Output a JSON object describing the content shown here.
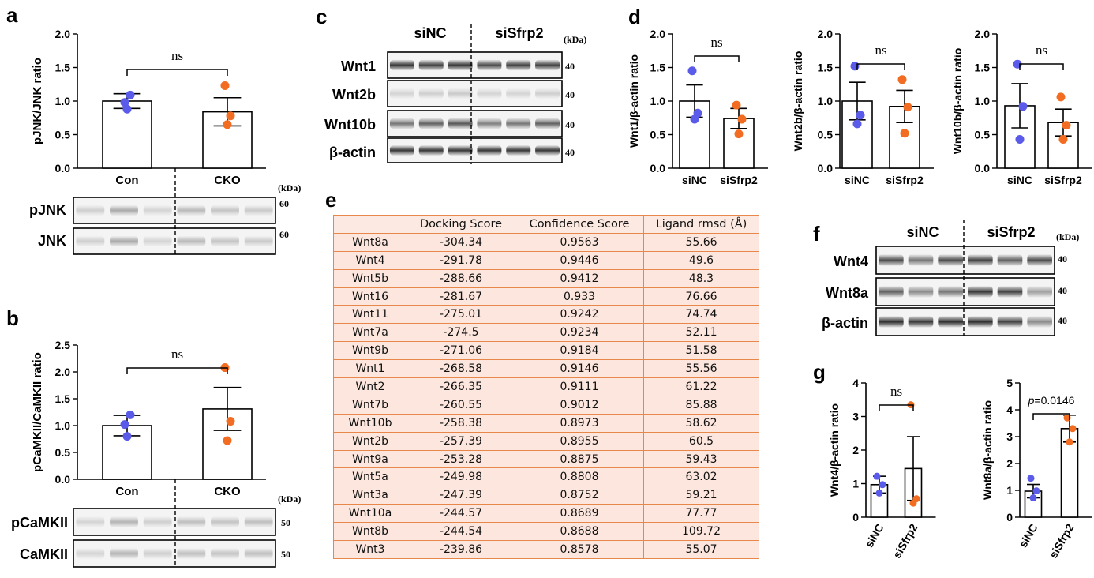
{
  "panels": {
    "a": "a",
    "b": "b",
    "c": "c",
    "d": "d",
    "e": "e",
    "f": "f",
    "g": "g"
  },
  "kda": "(kDa)",
  "chart_data": [
    {
      "id": "a",
      "type": "bar",
      "categories": [
        "Con",
        "CKO"
      ],
      "values": [
        1.0,
        0.84
      ],
      "errors": [
        0.11,
        0.21
      ],
      "points": [
        [
          0.98,
          1.09,
          0.88
        ],
        [
          1.23,
          0.78,
          0.65
        ]
      ],
      "ylabel": "pJNK/JNK ratio",
      "ylim": [
        0,
        2.0
      ],
      "yticks": [
        "0.0",
        "0.5",
        "1.0",
        "1.5",
        "2.0"
      ],
      "sig": "ns"
    },
    {
      "id": "b",
      "type": "bar",
      "categories": [
        "Con",
        "CKO"
      ],
      "values": [
        1.0,
        1.31
      ],
      "errors": [
        0.19,
        0.4
      ],
      "points": [
        [
          1.02,
          1.2,
          0.8
        ],
        [
          2.08,
          1.08,
          0.72
        ]
      ],
      "ylabel": "pCaMKII/CaMKII ratio",
      "ylim": [
        0,
        2.5
      ],
      "yticks": [
        "0.0",
        "0.5",
        "1.0",
        "1.5",
        "2.0",
        "2.5"
      ],
      "sig": "ns"
    },
    {
      "id": "d1",
      "type": "bar",
      "categories": [
        "siNC",
        "siSfrp2"
      ],
      "values": [
        1.0,
        0.74
      ],
      "errors": [
        0.24,
        0.15
      ],
      "points": [
        [
          1.45,
          0.82,
          0.73
        ],
        [
          0.94,
          0.73,
          0.51
        ]
      ],
      "ylabel": "Wnt1/β-actin ratio",
      "ylim": [
        0,
        2.0
      ],
      "yticks": [
        "0.0",
        "0.5",
        "1.0",
        "1.5",
        "2.0"
      ],
      "sig": "ns"
    },
    {
      "id": "d2",
      "type": "bar",
      "categories": [
        "siNC",
        "siSfrp2"
      ],
      "values": [
        1.0,
        0.92
      ],
      "errors": [
        0.28,
        0.24
      ],
      "points": [
        [
          1.52,
          0.79,
          0.66
        ],
        [
          1.32,
          0.91,
          0.52
        ]
      ],
      "ylabel": "Wnt2b/β-actin ratio",
      "ylim": [
        0,
        2.0
      ],
      "yticks": [
        "0.0",
        "0.5",
        "1.0",
        "1.5",
        "2.0"
      ],
      "sig": "ns"
    },
    {
      "id": "d3",
      "type": "bar",
      "categories": [
        "siNC",
        "siSfrp2"
      ],
      "values": [
        0.93,
        0.68
      ],
      "errors": [
        0.33,
        0.2
      ],
      "points": [
        [
          1.55,
          0.92,
          0.43
        ],
        [
          1.06,
          0.64,
          0.43
        ]
      ],
      "ylabel": "Wnt10b/β-actin ratio",
      "ylim": [
        0,
        2.0
      ],
      "yticks": [
        "0.0",
        "0.5",
        "1.0",
        "1.5",
        "2.0"
      ],
      "sig": "ns"
    },
    {
      "id": "g1",
      "type": "bar",
      "categories": [
        "siNC",
        "siSfrp2"
      ],
      "values": [
        0.97,
        1.45
      ],
      "errors": [
        0.25,
        0.95
      ],
      "points": [
        [
          1.22,
          0.97,
          0.72
        ],
        [
          3.35,
          0.55,
          0.42
        ]
      ],
      "ylabel": "Wnt4/β-actin ratio",
      "ylim": [
        0,
        4
      ],
      "yticks": [
        "0",
        "1",
        "2",
        "3",
        "4"
      ],
      "sig": "ns"
    },
    {
      "id": "g2",
      "type": "bar",
      "categories": [
        "siNC",
        "siSfrp2"
      ],
      "values": [
        0.97,
        3.3
      ],
      "errors": [
        0.25,
        0.5
      ],
      "points": [
        [
          1.45,
          0.98,
          0.72
        ],
        [
          3.7,
          3.3,
          2.8
        ]
      ],
      "ylabel": "Wnt8a/β-actin ratio",
      "ylim": [
        0,
        5
      ],
      "yticks": [
        "0",
        "1",
        "2",
        "3",
        "4",
        "5"
      ],
      "sig": "p=0.0146"
    },
    {
      "id": "e",
      "type": "table",
      "columns": [
        "",
        "Docking Score",
        "Confidence Score",
        "Ligand rmsd (Å)"
      ],
      "rows": [
        [
          "Wnt8a",
          "-304.34",
          "0.9563",
          "55.66"
        ],
        [
          "Wnt4",
          "-291.78",
          "0.9446",
          "49.6"
        ],
        [
          "Wnt5b",
          "-288.66",
          "0.9412",
          "48.3"
        ],
        [
          "Wnt16",
          "-281.67",
          "0.933",
          "76.66"
        ],
        [
          "Wnt11",
          "-275.01",
          "0.9242",
          "74.74"
        ],
        [
          "Wnt7a",
          "-274.5",
          "0.9234",
          "52.11"
        ],
        [
          "Wnt9b",
          "-271.06",
          "0.9184",
          "51.58"
        ],
        [
          "Wnt1",
          "-268.58",
          "0.9146",
          "55.56"
        ],
        [
          "Wnt2",
          "-266.35",
          "0.9111",
          "61.22"
        ],
        [
          "Wnt7b",
          "-260.55",
          "0.9012",
          "85.88"
        ],
        [
          "Wnt10b",
          "-258.38",
          "0.8973",
          "58.62"
        ],
        [
          "Wnt2b",
          "-257.39",
          "0.8955",
          "60.5"
        ],
        [
          "Wnt9a",
          "-253.28",
          "0.8875",
          "59.43"
        ],
        [
          "Wnt5a",
          "-249.98",
          "0.8808",
          "63.02"
        ],
        [
          "Wnt3a",
          "-247.39",
          "0.8752",
          "59.21"
        ],
        [
          "Wnt10a",
          "-244.57",
          "0.8689",
          "77.77"
        ],
        [
          "Wnt8b",
          "-244.54",
          "0.8688",
          "109.72"
        ],
        [
          "Wnt3",
          "-239.86",
          "0.8578",
          "55.07"
        ]
      ]
    }
  ],
  "blots": {
    "a": {
      "lanes": [
        "Con",
        "CKO"
      ],
      "bands": [
        {
          "label": "pJNK",
          "kda": "60"
        },
        {
          "label": "JNK",
          "kda": "60"
        }
      ]
    },
    "b": {
      "lanes": [
        "Con",
        "CKO"
      ],
      "bands": [
        {
          "label": "pCaMKII",
          "kda": "50"
        },
        {
          "label": "CaMKII",
          "kda": "50"
        }
      ]
    },
    "c": {
      "groups": [
        "siNC",
        "siSfrp2"
      ],
      "bands": [
        {
          "label": "Wnt1",
          "kda": "40"
        },
        {
          "label": "Wnt2b",
          "kda": "40"
        },
        {
          "label": "Wnt10b",
          "kda": "40"
        },
        {
          "label": "β-actin",
          "kda": "40"
        }
      ]
    },
    "f": {
      "groups": [
        "siNC",
        "siSfrp2"
      ],
      "bands": [
        {
          "label": "Wnt4",
          "kda": "40"
        },
        {
          "label": "Wnt8a",
          "kda": "40"
        },
        {
          "label": "β-actin",
          "kda": "40"
        }
      ]
    }
  },
  "colors": {
    "group1": "#5b5bea",
    "group2": "#f26d21",
    "table_border": "#e8874a",
    "table_fill": "#fce6dd"
  }
}
